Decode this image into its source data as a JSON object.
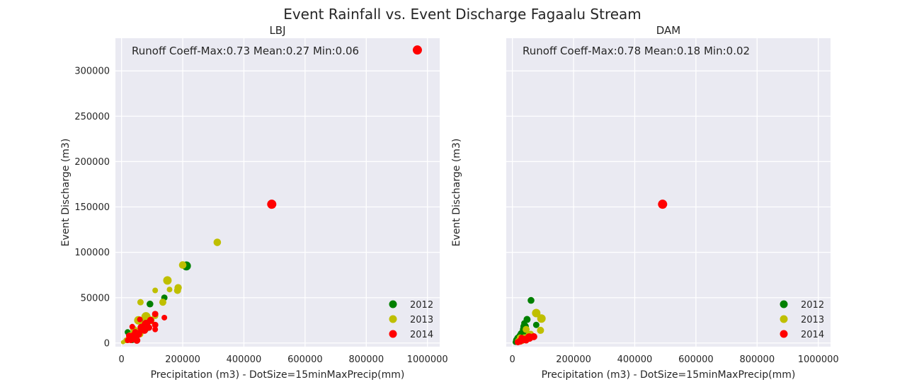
{
  "figure": {
    "title": "Event Rainfall vs. Event Discharge Fagaalu Stream"
  },
  "chart_data": [
    {
      "type": "scatter",
      "title": "LBJ",
      "xlabel": "Precipitation (m3) - DotSize=15minMaxPrecip(mm)",
      "ylabel": "Event Discharge (m3)",
      "annotation": "Runoff Coeff-Max:0.73 Mean:0.27 Min:0.06",
      "xlim": [
        -20000,
        1040000
      ],
      "ylim": [
        -4000,
        336000
      ],
      "xticks": [
        0,
        200000,
        400000,
        600000,
        800000,
        1000000
      ],
      "yticks": [
        0,
        50000,
        100000,
        150000,
        200000,
        250000,
        300000
      ],
      "grid": true,
      "show_yticklabels": true,
      "legend_position": "lower-right",
      "series": [
        {
          "name": "2012",
          "color": "#008000",
          "points": [
            [
              212000,
              85000,
              6.4
            ],
            [
              140000,
              50000,
              4.5
            ],
            [
              93000,
              43000,
              4.8
            ],
            [
              70000,
              20000,
              5.2
            ],
            [
              50000,
              12000,
              5.5
            ],
            [
              30000,
              8000,
              5.0
            ],
            [
              20000,
              12000,
              4.2
            ],
            [
              45000,
              5000,
              4.5
            ],
            [
              35000,
              3000,
              4.0
            ],
            [
              60000,
              25000,
              4.5
            ],
            [
              25000,
              6000,
              4.0
            ],
            [
              80000,
              15000,
              4.0
            ]
          ]
        },
        {
          "name": "2013",
          "color": "#bfbf00",
          "points": [
            [
              313000,
              111000,
              5.3
            ],
            [
              200000,
              86000,
              5.3
            ],
            [
              150000,
              69000,
              6.0
            ],
            [
              185000,
              61000,
              5.2
            ],
            [
              183000,
              58000,
              5.0
            ],
            [
              157000,
              59000,
              4.0
            ],
            [
              110000,
              58000,
              4.0
            ],
            [
              135000,
              45000,
              5.0
            ],
            [
              62000,
              45000,
              4.5
            ],
            [
              80000,
              29000,
              6.5
            ],
            [
              55000,
              25000,
              6.0
            ],
            [
              70000,
              20000,
              6.0
            ],
            [
              45000,
              12000,
              6.5
            ],
            [
              60000,
              10000,
              5.0
            ],
            [
              30000,
              8000,
              5.5
            ],
            [
              15000,
              3000,
              4.0
            ],
            [
              5000,
              1000,
              3.0
            ],
            [
              40000,
              15000,
              5.0
            ],
            [
              95000,
              25000,
              5.5
            ],
            [
              110000,
              30000,
              4.5
            ]
          ]
        },
        {
          "name": "2014",
          "color": "#ff0000",
          "points": [
            [
              967000,
              323000,
              6.5
            ],
            [
              491000,
              153000,
              6.5
            ],
            [
              110000,
              32000,
              4.5
            ],
            [
              140000,
              28000,
              4.0
            ],
            [
              95000,
              25000,
              5.0
            ],
            [
              80000,
              21000,
              6.0
            ],
            [
              65000,
              17000,
              5.5
            ],
            [
              110000,
              20000,
              4.5
            ],
            [
              110000,
              15000,
              4.0
            ],
            [
              75000,
              14000,
              5.0
            ],
            [
              55000,
              10000,
              5.5
            ],
            [
              40000,
              7000,
              6.5
            ],
            [
              30000,
              5000,
              6.5
            ],
            [
              25000,
              8000,
              4.5
            ],
            [
              50000,
              3000,
              5.0
            ],
            [
              45000,
              12000,
              4.5
            ],
            [
              60000,
              26000,
              4.0
            ],
            [
              35000,
              18000,
              4.0
            ],
            [
              20000,
              3000,
              4.0
            ],
            [
              90000,
              17000,
              4.5
            ]
          ]
        }
      ]
    },
    {
      "type": "scatter",
      "title": "DAM",
      "xlabel": "Precipitation (m3) - DotSize=15minMaxPrecip(mm)",
      "ylabel": "Event Discharge (m3)",
      "annotation": "Runoff Coeff-Max:0.78 Mean:0.18 Min:0.02",
      "xlim": [
        -20000,
        1040000
      ],
      "ylim": [
        -4000,
        336000
      ],
      "xticks": [
        0,
        200000,
        400000,
        600000,
        800000,
        1000000
      ],
      "yticks": [
        0,
        50000,
        100000,
        150000,
        200000,
        250000,
        300000
      ],
      "grid": true,
      "show_yticklabels": false,
      "legend_position": "lower-right",
      "series": [
        {
          "name": "2012",
          "color": "#008000",
          "points": [
            [
              61000,
              47000,
              4.8
            ],
            [
              48000,
              26000,
              5.0
            ],
            [
              38000,
              22000,
              4.0
            ],
            [
              40000,
              18000,
              6.0
            ],
            [
              78000,
              20000,
              4.5
            ],
            [
              30000,
              10000,
              5.5
            ],
            [
              20000,
              5000,
              6.0
            ],
            [
              15000,
              3000,
              5.5
            ],
            [
              25000,
              8000,
              5.0
            ],
            [
              45000,
              12000,
              4.5
            ],
            [
              35000,
              15000,
              4.5
            ],
            [
              10000,
              1000,
              4.0
            ]
          ]
        },
        {
          "name": "2013",
          "color": "#bfbf00",
          "points": [
            [
              78000,
              33000,
              6.0
            ],
            [
              95000,
              27000,
              6.0
            ],
            [
              92000,
              14000,
              5.0
            ],
            [
              55000,
              8000,
              5.5
            ],
            [
              40000,
              5000,
              6.0
            ],
            [
              30000,
              3000,
              5.5
            ],
            [
              20000,
              2000,
              5.0
            ],
            [
              60000,
              10000,
              4.5
            ],
            [
              45000,
              15000,
              5.0
            ],
            [
              25000,
              6000,
              4.5
            ]
          ]
        },
        {
          "name": "2014",
          "color": "#ff0000",
          "points": [
            [
              491000,
              153000,
              6.5
            ],
            [
              55000,
              6000,
              6.0
            ],
            [
              70000,
              7000,
              5.0
            ],
            [
              35000,
              4000,
              5.5
            ],
            [
              25000,
              2000,
              5.0
            ],
            [
              45000,
              3000,
              4.5
            ],
            [
              18000,
              1000,
              4.5
            ],
            [
              30000,
              6000,
              4.0
            ]
          ]
        }
      ]
    }
  ]
}
